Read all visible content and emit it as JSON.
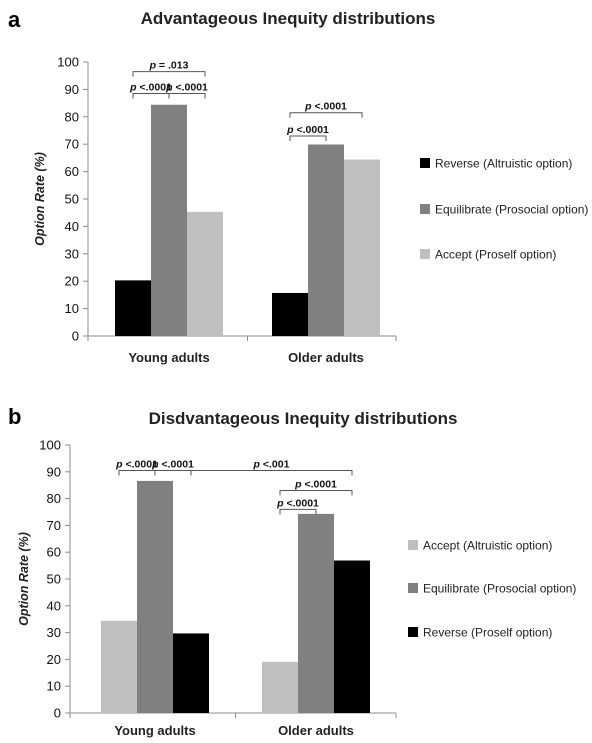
{
  "colors": {
    "black": "#000000",
    "dark_gray": "#808080",
    "light_gray": "#bfbfbf"
  },
  "chart_data": [
    {
      "panel": "a",
      "type": "bar",
      "title": "Advantageous Inequity distributions",
      "ylabel": "Option Rate (%)",
      "xlabel": "",
      "ylim": [
        0,
        100
      ],
      "yticks": [
        0,
        10,
        20,
        30,
        40,
        50,
        60,
        70,
        80,
        90,
        100
      ],
      "categories": [
        "Young adults",
        "Older adults"
      ],
      "series": [
        {
          "name": "Reverse (Altruistic option)",
          "color": "#000000",
          "values": [
            20.3,
            15.7
          ]
        },
        {
          "name": "Equilibrate (Prosocial option)",
          "color": "#808080",
          "values": [
            84.4,
            69.9
          ]
        },
        {
          "name": "Accept (Proself option)",
          "color": "#bfbfbf",
          "values": [
            45.3,
            64.4
          ]
        }
      ],
      "legend_position": "right",
      "annotations": [
        {
          "label": "p = .013",
          "from": {
            "category": 0,
            "series": 0
          },
          "to": {
            "category": 0,
            "series": 2
          },
          "height": 96.5
        },
        {
          "label": "p <.0001",
          "from": {
            "category": 0,
            "series": 0
          },
          "to": {
            "category": 0,
            "series": 1
          },
          "height": 88.5
        },
        {
          "label": "p <.0001",
          "from": {
            "category": 0,
            "series": 1
          },
          "to": {
            "category": 0,
            "series": 2
          },
          "height": 88.5
        },
        {
          "label": "p <.0001",
          "from": {
            "category": 1,
            "series": 0
          },
          "to": {
            "category": 1,
            "series": 2
          },
          "height": 81.5
        },
        {
          "label": "p <.0001",
          "from": {
            "category": 1,
            "series": 0
          },
          "to": {
            "category": 1,
            "series": 1
          },
          "height": 73
        }
      ]
    },
    {
      "panel": "b",
      "type": "bar",
      "title": "Disdvantageous Inequity distributions",
      "ylabel": "Option Rate (%)",
      "xlabel": "",
      "ylim": [
        0,
        100
      ],
      "yticks": [
        0,
        10,
        20,
        30,
        40,
        50,
        60,
        70,
        80,
        90,
        100
      ],
      "categories": [
        "Young adults",
        "Older adults"
      ],
      "series": [
        {
          "name": "Accept (Altruistic option)",
          "color": "#bfbfbf",
          "values": [
            34.4,
            19.1
          ]
        },
        {
          "name": "Equilibrate (Prosocial option)",
          "color": "#808080",
          "values": [
            86.6,
            74.3
          ]
        },
        {
          "name": "Reverse (Proself option)",
          "color": "#000000",
          "values": [
            29.7,
            56.9
          ]
        }
      ],
      "legend_position": "right",
      "annotations": [
        {
          "label": "p <.0001",
          "from": {
            "category": 0,
            "series": 0
          },
          "to": {
            "category": 0,
            "series": 1
          },
          "height": 90.5
        },
        {
          "label": "p <.0001",
          "from": {
            "category": 0,
            "series": 1
          },
          "to": {
            "category": 0,
            "series": 2
          },
          "height": 90.5
        },
        {
          "label": "p <.001",
          "from": {
            "category": 0,
            "series": 2
          },
          "to": {
            "category": 1,
            "series": 2
          },
          "height": 90.5
        },
        {
          "label": "p <.0001",
          "from": {
            "category": 1,
            "series": 0
          },
          "to": {
            "category": 1,
            "series": 2
          },
          "height": 83
        },
        {
          "label": "p <.0001",
          "from": {
            "category": 1,
            "series": 0
          },
          "to": {
            "category": 1,
            "series": 1
          },
          "height": 76
        }
      ]
    }
  ]
}
